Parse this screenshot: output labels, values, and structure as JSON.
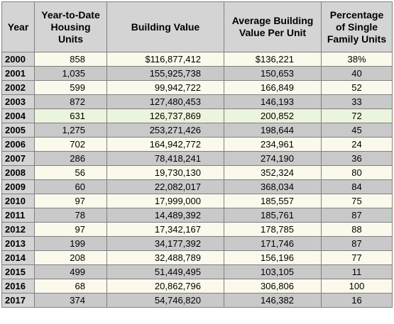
{
  "table": {
    "header": [
      "Year",
      "Year-to-Date Housing Units",
      "Building Value",
      "Average Building Value Per Unit",
      "Percentage of Single Family Units"
    ],
    "rows": [
      [
        "2000",
        "858",
        "$116,877,412",
        "$136,221",
        "38%"
      ],
      [
        "2001",
        "1,035",
        "155,925,738",
        "150,653",
        "40"
      ],
      [
        "2002",
        "599",
        "99,942,722",
        "166,849",
        "52"
      ],
      [
        "2003",
        "872",
        "127,480,453",
        "146,193",
        "33"
      ],
      [
        "2004",
        "631",
        "126,737,869",
        "200,852",
        "72"
      ],
      [
        "2005",
        "1,275",
        "253,271,426",
        "198,644",
        "45"
      ],
      [
        "2006",
        "702",
        "164,942,772",
        "234,961",
        "24"
      ],
      [
        "2007",
        "286",
        "78,418,241",
        "274,190",
        "36"
      ],
      [
        "2008",
        "56",
        "19,730,130",
        "352,324",
        "80"
      ],
      [
        "2009",
        "60",
        "22,082,017",
        "368,034",
        "84"
      ],
      [
        "2010",
        "97",
        "17,999,000",
        "185,557",
        "75"
      ],
      [
        "2011",
        "78",
        "14,489,392",
        "185,761",
        "87"
      ],
      [
        "2012",
        "97",
        "17,342,167",
        "178,785",
        "88"
      ],
      [
        "2013",
        "199",
        "34,177,392",
        "171,746",
        "87"
      ],
      [
        "2014",
        "208",
        "32,488,789",
        "156,196",
        "77"
      ],
      [
        "2015",
        "499",
        "51,449,495",
        "103,105",
        "11"
      ],
      [
        "2016",
        "68",
        "20,862,796",
        "306,806",
        "100"
      ],
      [
        "2017",
        "374",
        "54,746,820",
        "146,382",
        "16"
      ]
    ]
  }
}
